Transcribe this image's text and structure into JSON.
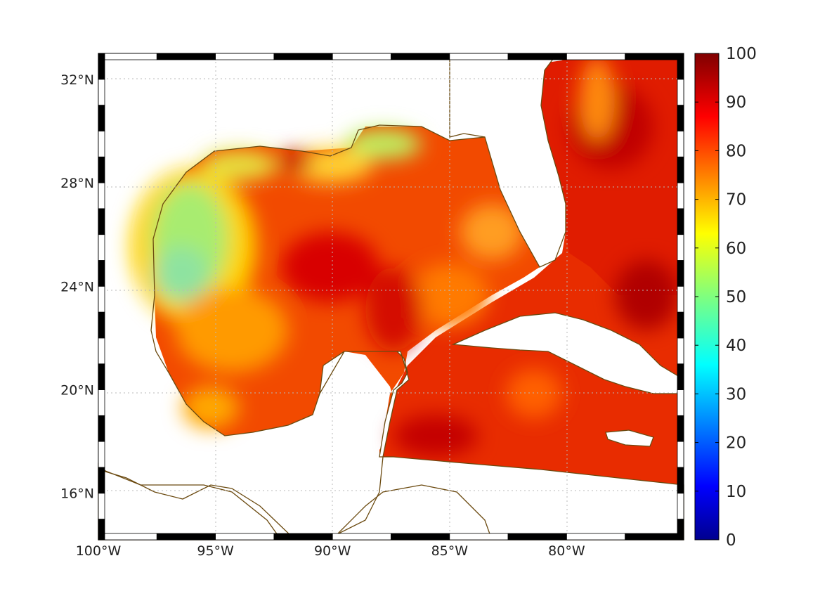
{
  "map": {
    "lon_range": [
      -100,
      -75
    ],
    "lat_range": [
      14.2,
      33
    ],
    "lon_ticks": [
      {
        "value": -100,
        "label": "100°W"
      },
      {
        "value": -95,
        "label": "95°W"
      },
      {
        "value": -90,
        "label": "90°W"
      },
      {
        "value": -85,
        "label": "85°W"
      },
      {
        "value": -80,
        "label": "80°W"
      }
    ],
    "lat_ticks": [
      {
        "value": 32,
        "label": "32°N"
      },
      {
        "value": 28,
        "label": "28°N"
      },
      {
        "value": 24,
        "label": "24°N"
      },
      {
        "value": 20,
        "label": "20°N"
      },
      {
        "value": 16,
        "label": "16°N"
      }
    ],
    "gridlines": true,
    "coastline_color": "#6b4a10",
    "land_color": "#ffffff"
  },
  "colorbar": {
    "min": 0,
    "max": 100,
    "colormap": "jet",
    "ticks": [
      "0",
      "10",
      "20",
      "30",
      "40",
      "50",
      "60",
      "70",
      "80",
      "90",
      "100"
    ]
  },
  "field": {
    "description_values": "approximate percent values over water; ~50-60 near NW Gulf coast, ~80-95 elsewhere"
  }
}
